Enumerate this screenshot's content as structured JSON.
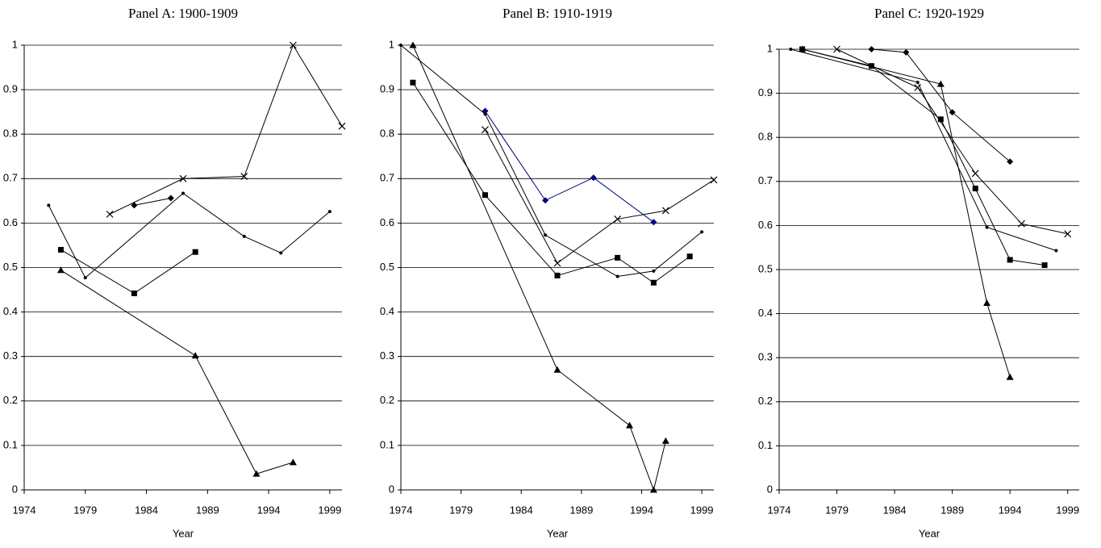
{
  "chart_data": [
    {
      "type": "line",
      "title": "Panel A: 1900-1909",
      "x_label": "Year",
      "xlim": [
        1974,
        2000
      ],
      "xticks": [
        1974,
        1979,
        1984,
        1989,
        1994,
        1999
      ],
      "ylim": [
        0,
        1
      ],
      "yticks": [
        0,
        0.1,
        0.2,
        0.3,
        0.4,
        0.5,
        0.6,
        0.7,
        0.8,
        0.9,
        1
      ],
      "grid": true,
      "series": [
        {
          "marker": "dot",
          "color": "#000000",
          "x": [
            1976,
            1979,
            1987,
            1992,
            1995,
            1999
          ],
          "values": [
            0.64,
            0.477,
            0.667,
            0.57,
            0.533,
            0.626
          ]
        },
        {
          "marker": "square",
          "color": "#000000",
          "x": [
            1977,
            1983,
            1988
          ],
          "values": [
            0.54,
            0.442,
            0.535
          ]
        },
        {
          "marker": "triangle",
          "color": "#000000",
          "x": [
            1977,
            1988,
            1993,
            1996
          ],
          "values": [
            0.494,
            0.302,
            0.036,
            0.062
          ]
        },
        {
          "marker": "diamond",
          "color": "#000000",
          "x": [
            1983,
            1986
          ],
          "values": [
            0.64,
            0.656
          ]
        },
        {
          "marker": "x",
          "color": "#000000",
          "x": [
            1981,
            1987,
            1992,
            1996,
            2000
          ],
          "values": [
            0.62,
            0.7,
            0.705,
            1,
            0.818
          ]
        }
      ]
    },
    {
      "type": "line",
      "title": "Panel B: 1910-1919",
      "x_label": "Year",
      "xlim": [
        1974,
        2000
      ],
      "xticks": [
        1974,
        1979,
        1984,
        1989,
        1994,
        1999
      ],
      "ylim": [
        0,
        1
      ],
      "yticks": [
        0,
        0.1,
        0.2,
        0.3,
        0.4,
        0.5,
        0.6,
        0.7,
        0.8,
        0.9,
        1
      ],
      "grid": true,
      "series": [
        {
          "marker": "dot",
          "color": "#000000",
          "x": [
            1974,
            1981,
            1986,
            1992,
            1995,
            1999
          ],
          "values": [
            1,
            0.845,
            0.573,
            0.48,
            0.492,
            0.58
          ]
        },
        {
          "marker": "square",
          "color": "#000000",
          "x": [
            1975,
            1981,
            1987,
            1992,
            1995,
            1998
          ],
          "values": [
            0.916,
            0.663,
            0.482,
            0.522,
            0.466,
            0.525
          ]
        },
        {
          "marker": "triangle",
          "color": "#000000",
          "x": [
            1975,
            1987,
            1993,
            1995,
            1996
          ],
          "values": [
            1,
            0.27,
            0.145,
            0,
            0.11
          ]
        },
        {
          "marker": "diamond",
          "color": "#000080",
          "x": [
            1981,
            1986,
            1990,
            1995
          ],
          "values": [
            0.852,
            0.651,
            0.702,
            0.602
          ]
        },
        {
          "marker": "x",
          "color": "#000000",
          "x": [
            1981,
            1987,
            1992,
            1996,
            2000
          ],
          "values": [
            0.81,
            0.51,
            0.609,
            0.628,
            0.697
          ]
        }
      ]
    },
    {
      "type": "line",
      "title": "Panel C: 1920-1929",
      "x_label": "Year",
      "xlim": [
        1974,
        2000
      ],
      "xticks": [
        1974,
        1979,
        1984,
        1989,
        1994,
        1999
      ],
      "ylim": [
        0,
        1
      ],
      "yticks": [
        0,
        0.1,
        0.2,
        0.3,
        0.4,
        0.5,
        0.6,
        0.7,
        0.8,
        0.9,
        1
      ],
      "grid": true,
      "series": [
        {
          "marker": "dot",
          "color": "#000000",
          "x": [
            1975,
            1986,
            1992,
            1998
          ],
          "values": [
            1,
            0.925,
            0.596,
            0.543
          ]
        },
        {
          "marker": "square",
          "color": "#000000",
          "x": [
            1976,
            1982,
            1988,
            1991,
            1994,
            1997
          ],
          "values": [
            1,
            0.962,
            0.841,
            0.684,
            0.522,
            0.51
          ]
        },
        {
          "marker": "triangle",
          "color": "#000000",
          "x": [
            1976,
            1988,
            1992,
            1994
          ],
          "values": [
            1,
            0.921,
            0.424,
            0.256
          ]
        },
        {
          "marker": "diamond",
          "color": "#000000",
          "x": [
            1982,
            1985,
            1989,
            1994
          ],
          "values": [
            1,
            0.993,
            0.857,
            0.745
          ]
        },
        {
          "marker": "x",
          "color": "#000000",
          "x": [
            1979,
            1986,
            1991,
            1995,
            1999
          ],
          "values": [
            1,
            0.913,
            0.718,
            0.604,
            0.581
          ]
        }
      ]
    }
  ]
}
